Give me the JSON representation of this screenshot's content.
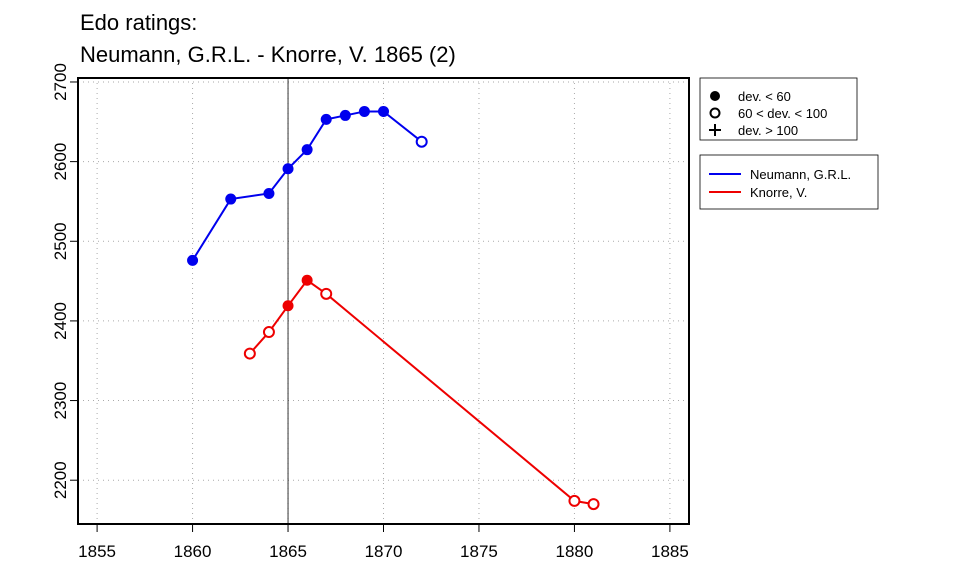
{
  "chart_data": {
    "type": "line",
    "title_lines": [
      "Edo ratings:",
      "Neumann, G.R.L. - Knorre, V. 1865 (2)"
    ],
    "xlabel": "",
    "ylabel": "",
    "xlim": [
      1854,
      1886
    ],
    "ylim": [
      2145,
      2705
    ],
    "x_ticks": [
      1855,
      1860,
      1865,
      1870,
      1875,
      1880,
      1885
    ],
    "y_ticks": [
      2200,
      2300,
      2400,
      2500,
      2600,
      2700
    ],
    "grid": true,
    "vertical_marker_x": 1865,
    "series": [
      {
        "name": "Neumann, G.R.L.",
        "color": "#0000ee",
        "points": [
          {
            "x": 1860,
            "y": 2476,
            "marker": "filled"
          },
          {
            "x": 1862,
            "y": 2553,
            "marker": "filled"
          },
          {
            "x": 1864,
            "y": 2560,
            "marker": "filled"
          },
          {
            "x": 1865,
            "y": 2591,
            "marker": "filled"
          },
          {
            "x": 1866,
            "y": 2615,
            "marker": "filled"
          },
          {
            "x": 1867,
            "y": 2653,
            "marker": "filled"
          },
          {
            "x": 1868,
            "y": 2658,
            "marker": "filled"
          },
          {
            "x": 1869,
            "y": 2663,
            "marker": "filled"
          },
          {
            "x": 1870,
            "y": 2663,
            "marker": "filled"
          },
          {
            "x": 1872,
            "y": 2625,
            "marker": "open"
          }
        ]
      },
      {
        "name": "Knorre, V.",
        "color": "#ee0000",
        "points": [
          {
            "x": 1863,
            "y": 2359,
            "marker": "open"
          },
          {
            "x": 1864,
            "y": 2386,
            "marker": "open"
          },
          {
            "x": 1865,
            "y": 2419,
            "marker": "filled"
          },
          {
            "x": 1866,
            "y": 2451,
            "marker": "filled"
          },
          {
            "x": 1867,
            "y": 2434,
            "marker": "open"
          },
          {
            "x": 1880,
            "y": 2174,
            "marker": "open"
          },
          {
            "x": 1881,
            "y": 2170,
            "marker": "open"
          }
        ]
      }
    ],
    "marker_legend": [
      {
        "symbol": "filled",
        "label": "dev. < 60"
      },
      {
        "symbol": "open",
        "label": "60 < dev. < 100"
      },
      {
        "symbol": "plus",
        "label": "dev. > 100"
      }
    ],
    "legend_placement": "right"
  }
}
